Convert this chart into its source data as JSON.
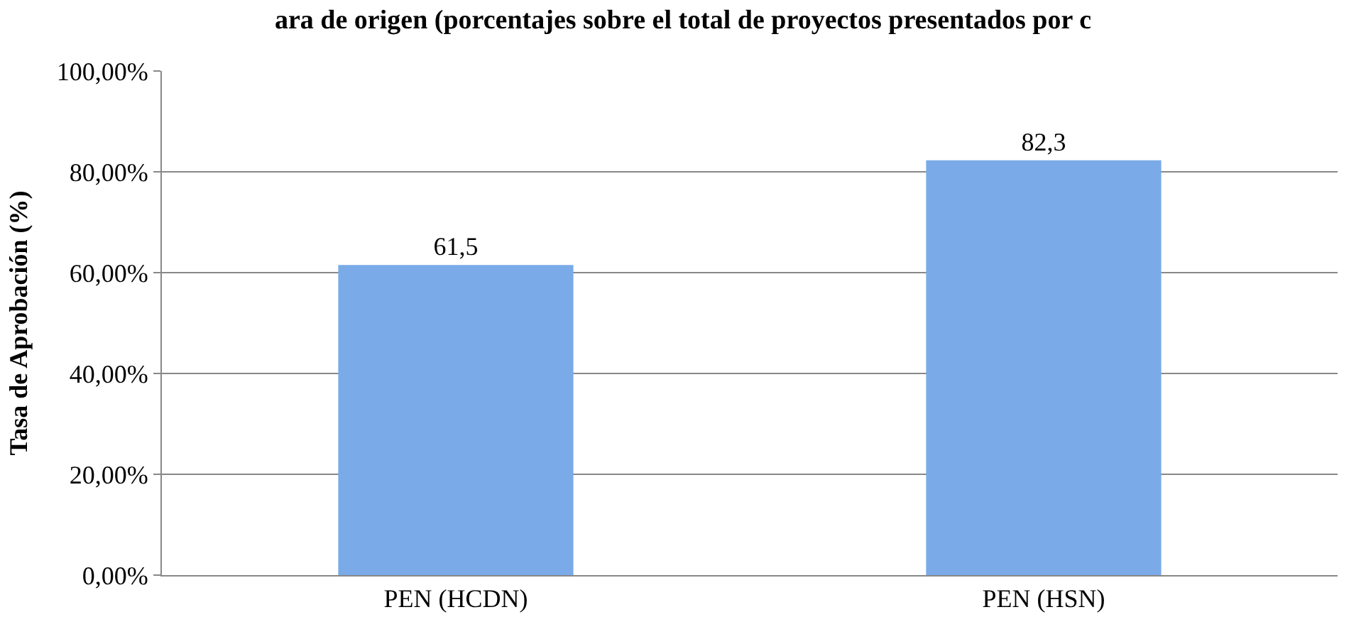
{
  "chart_data": {
    "type": "bar",
    "title": "ara de origen (porcentajes sobre el total de proyectos presentados por c",
    "ylabel": "Tasa de Aprobación (%)",
    "categories": [
      "PEN (HCDN)",
      "PEN (HSN)"
    ],
    "values": [
      61.5,
      82.3
    ],
    "value_labels": [
      "61,5",
      "82,3"
    ],
    "color": "#7aaae8",
    "ylim": [
      0,
      100
    ],
    "yticks": [
      {
        "value": 0,
        "label": "0,00%"
      },
      {
        "value": 20,
        "label": "20,00%"
      },
      {
        "value": 40,
        "label": "40,00%"
      },
      {
        "value": 60,
        "label": "60,00%"
      },
      {
        "value": 80,
        "label": "80,00%"
      },
      {
        "value": 100,
        "label": "100,00%"
      }
    ],
    "grid": "y",
    "legend": false
  }
}
